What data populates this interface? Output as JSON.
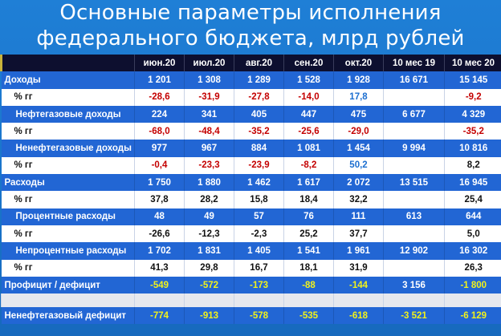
{
  "title": {
    "line1": "Основные параметры исполнения",
    "line2": "федерального бюджета, млрд рублей"
  },
  "columns": [
    "",
    "июн.20",
    "июл.20",
    "авг.20",
    "сен.20",
    "окт.20",
    "10 мес 19",
    "10 мес 20"
  ],
  "rows": [
    {
      "label": "Доходы",
      "kind": "top",
      "band": "blue",
      "cells": [
        {
          "v": "1 201"
        },
        {
          "v": "1 308"
        },
        {
          "v": "1 289"
        },
        {
          "v": "1 528"
        },
        {
          "v": "1 928"
        },
        {
          "v": "16 671"
        },
        {
          "v": "15 145"
        }
      ]
    },
    {
      "label": "% гг",
      "kind": "pct",
      "band": "white",
      "cells": [
        {
          "v": "-28,6",
          "c": "neg"
        },
        {
          "v": "-31,9",
          "c": "neg"
        },
        {
          "v": "-27,8",
          "c": "neg"
        },
        {
          "v": "-14,0",
          "c": "neg"
        },
        {
          "v": "17,8",
          "c": "pos"
        },
        {
          "v": ""
        },
        {
          "v": "-9,2",
          "c": "neg"
        }
      ]
    },
    {
      "label": "Нефтегазовые доходы",
      "kind": "sub",
      "band": "blue",
      "cells": [
        {
          "v": "224"
        },
        {
          "v": "341"
        },
        {
          "v": "405"
        },
        {
          "v": "447"
        },
        {
          "v": "475"
        },
        {
          "v": "6 677"
        },
        {
          "v": "4 329"
        }
      ]
    },
    {
      "label": "% гг",
      "kind": "pct",
      "band": "white",
      "cells": [
        {
          "v": "-68,0",
          "c": "neg"
        },
        {
          "v": "-48,4",
          "c": "neg"
        },
        {
          "v": "-35,2",
          "c": "neg"
        },
        {
          "v": "-25,6",
          "c": "neg"
        },
        {
          "v": "-29,0",
          "c": "neg"
        },
        {
          "v": ""
        },
        {
          "v": "-35,2",
          "c": "neg"
        }
      ]
    },
    {
      "label": "Ненефтегазовые доходы",
      "kind": "sub",
      "band": "blue",
      "cells": [
        {
          "v": "977"
        },
        {
          "v": "967"
        },
        {
          "v": "884"
        },
        {
          "v": "1 081"
        },
        {
          "v": "1 454"
        },
        {
          "v": "9 994"
        },
        {
          "v": "10 816"
        }
      ]
    },
    {
      "label": "% гг",
      "kind": "pct",
      "band": "white",
      "cells": [
        {
          "v": "-0,4",
          "c": "neg"
        },
        {
          "v": "-23,3",
          "c": "neg"
        },
        {
          "v": "-23,9",
          "c": "neg"
        },
        {
          "v": "-8,2",
          "c": "neg"
        },
        {
          "v": "50,2",
          "c": "pos"
        },
        {
          "v": ""
        },
        {
          "v": "8,2"
        }
      ]
    },
    {
      "label": "Расходы",
      "kind": "top",
      "band": "blue",
      "cells": [
        {
          "v": "1 750"
        },
        {
          "v": "1 880"
        },
        {
          "v": "1 462"
        },
        {
          "v": "1 617"
        },
        {
          "v": "2 072"
        },
        {
          "v": "13 515"
        },
        {
          "v": "16 945"
        }
      ]
    },
    {
      "label": "% гг",
      "kind": "pct",
      "band": "white",
      "cells": [
        {
          "v": "37,8"
        },
        {
          "v": "28,2"
        },
        {
          "v": "15,8"
        },
        {
          "v": "18,4"
        },
        {
          "v": "32,2"
        },
        {
          "v": ""
        },
        {
          "v": "25,4"
        }
      ]
    },
    {
      "label": "Процентные расходы",
      "kind": "sub",
      "band": "blue",
      "cells": [
        {
          "v": "48"
        },
        {
          "v": "49"
        },
        {
          "v": "57"
        },
        {
          "v": "76"
        },
        {
          "v": "111"
        },
        {
          "v": "613"
        },
        {
          "v": "644"
        }
      ]
    },
    {
      "label": "% гг",
      "kind": "pct",
      "band": "white",
      "cells": [
        {
          "v": "-26,6"
        },
        {
          "v": "-12,3"
        },
        {
          "v": "-2,3"
        },
        {
          "v": "25,2"
        },
        {
          "v": "37,7"
        },
        {
          "v": ""
        },
        {
          "v": "5,0"
        }
      ]
    },
    {
      "label": "Непроцентные расходы",
      "kind": "sub",
      "band": "blue",
      "cells": [
        {
          "v": "1 702"
        },
        {
          "v": "1 831"
        },
        {
          "v": "1 405"
        },
        {
          "v": "1 541"
        },
        {
          "v": "1 961"
        },
        {
          "v": "12 902"
        },
        {
          "v": "16 302"
        }
      ]
    },
    {
      "label": "% гг",
      "kind": "pct",
      "band": "white",
      "cells": [
        {
          "v": "41,3"
        },
        {
          "v": "29,8"
        },
        {
          "v": "16,7"
        },
        {
          "v": "18,1"
        },
        {
          "v": "31,9"
        },
        {
          "v": ""
        },
        {
          "v": "26,3"
        }
      ]
    },
    {
      "label": "Профицит / дефицит",
      "kind": "top",
      "band": "blue",
      "cells": [
        {
          "v": "-549",
          "c": "yellow"
        },
        {
          "v": "-572",
          "c": "yellow"
        },
        {
          "v": "-173",
          "c": "yellow"
        },
        {
          "v": "-88",
          "c": "yellow"
        },
        {
          "v": "-144",
          "c": "yellow"
        },
        {
          "v": "3 156"
        },
        {
          "v": "-1 800",
          "c": "yellow"
        }
      ]
    },
    {
      "label": "",
      "kind": "gap",
      "band": "gap",
      "cells": []
    },
    {
      "label": "Ненефтегазовый дефицит",
      "kind": "top",
      "band": "blue",
      "cells": [
        {
          "v": "-774",
          "c": "yellow"
        },
        {
          "v": "-913",
          "c": "yellow"
        },
        {
          "v": "-578",
          "c": "yellow"
        },
        {
          "v": "-535",
          "c": "yellow"
        },
        {
          "v": "-618",
          "c": "yellow"
        },
        {
          "v": "-3 521",
          "c": "yellow"
        },
        {
          "v": "-6 129",
          "c": "yellow"
        }
      ]
    }
  ]
}
